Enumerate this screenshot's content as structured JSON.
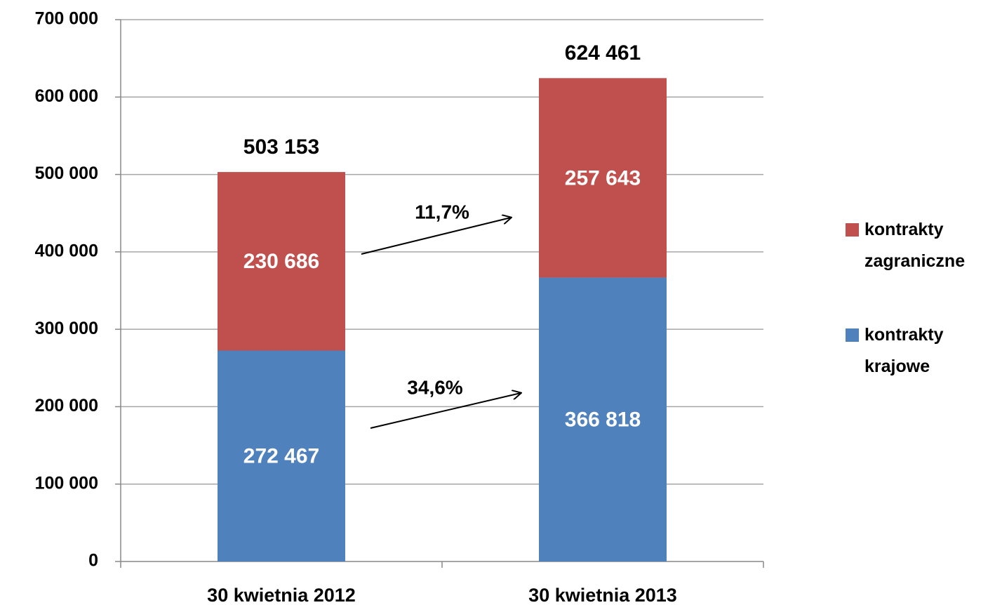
{
  "chart_data": {
    "type": "stacked_bar",
    "categories": [
      "30 kwietnia 2012",
      "30 kwietnia 2013"
    ],
    "series": [
      {
        "name": "kontrakty krajowe",
        "color": "#4f81bd",
        "values": [
          272467,
          366818
        ],
        "value_labels": [
          "272 467",
          "366 818"
        ]
      },
      {
        "name": "kontrakty zagraniczne",
        "color": "#c0504d",
        "values": [
          230686,
          257643
        ],
        "value_labels": [
          "230 686",
          "257 643"
        ]
      }
    ],
    "totals": [
      503153,
      624461
    ],
    "total_labels": [
      "503 153",
      "624 461"
    ],
    "annotations": [
      {
        "text": "11,7%"
      },
      {
        "text": "34,6%"
      }
    ],
    "ylim": [
      0,
      700000
    ],
    "yticks": [
      0,
      {
        "value": 100000,
        "label": "100 000"
      },
      {
        "value": 200000,
        "label": "200 000"
      },
      {
        "value": 300000,
        "label": "300 000"
      },
      {
        "value": 400000,
        "label": "400 000"
      },
      {
        "value": 500000,
        "label": "500 000"
      },
      {
        "value": 600000,
        "label": "600 000"
      },
      {
        "value": 700000,
        "label": "700 000"
      }
    ],
    "grid": true,
    "legend": "right"
  }
}
